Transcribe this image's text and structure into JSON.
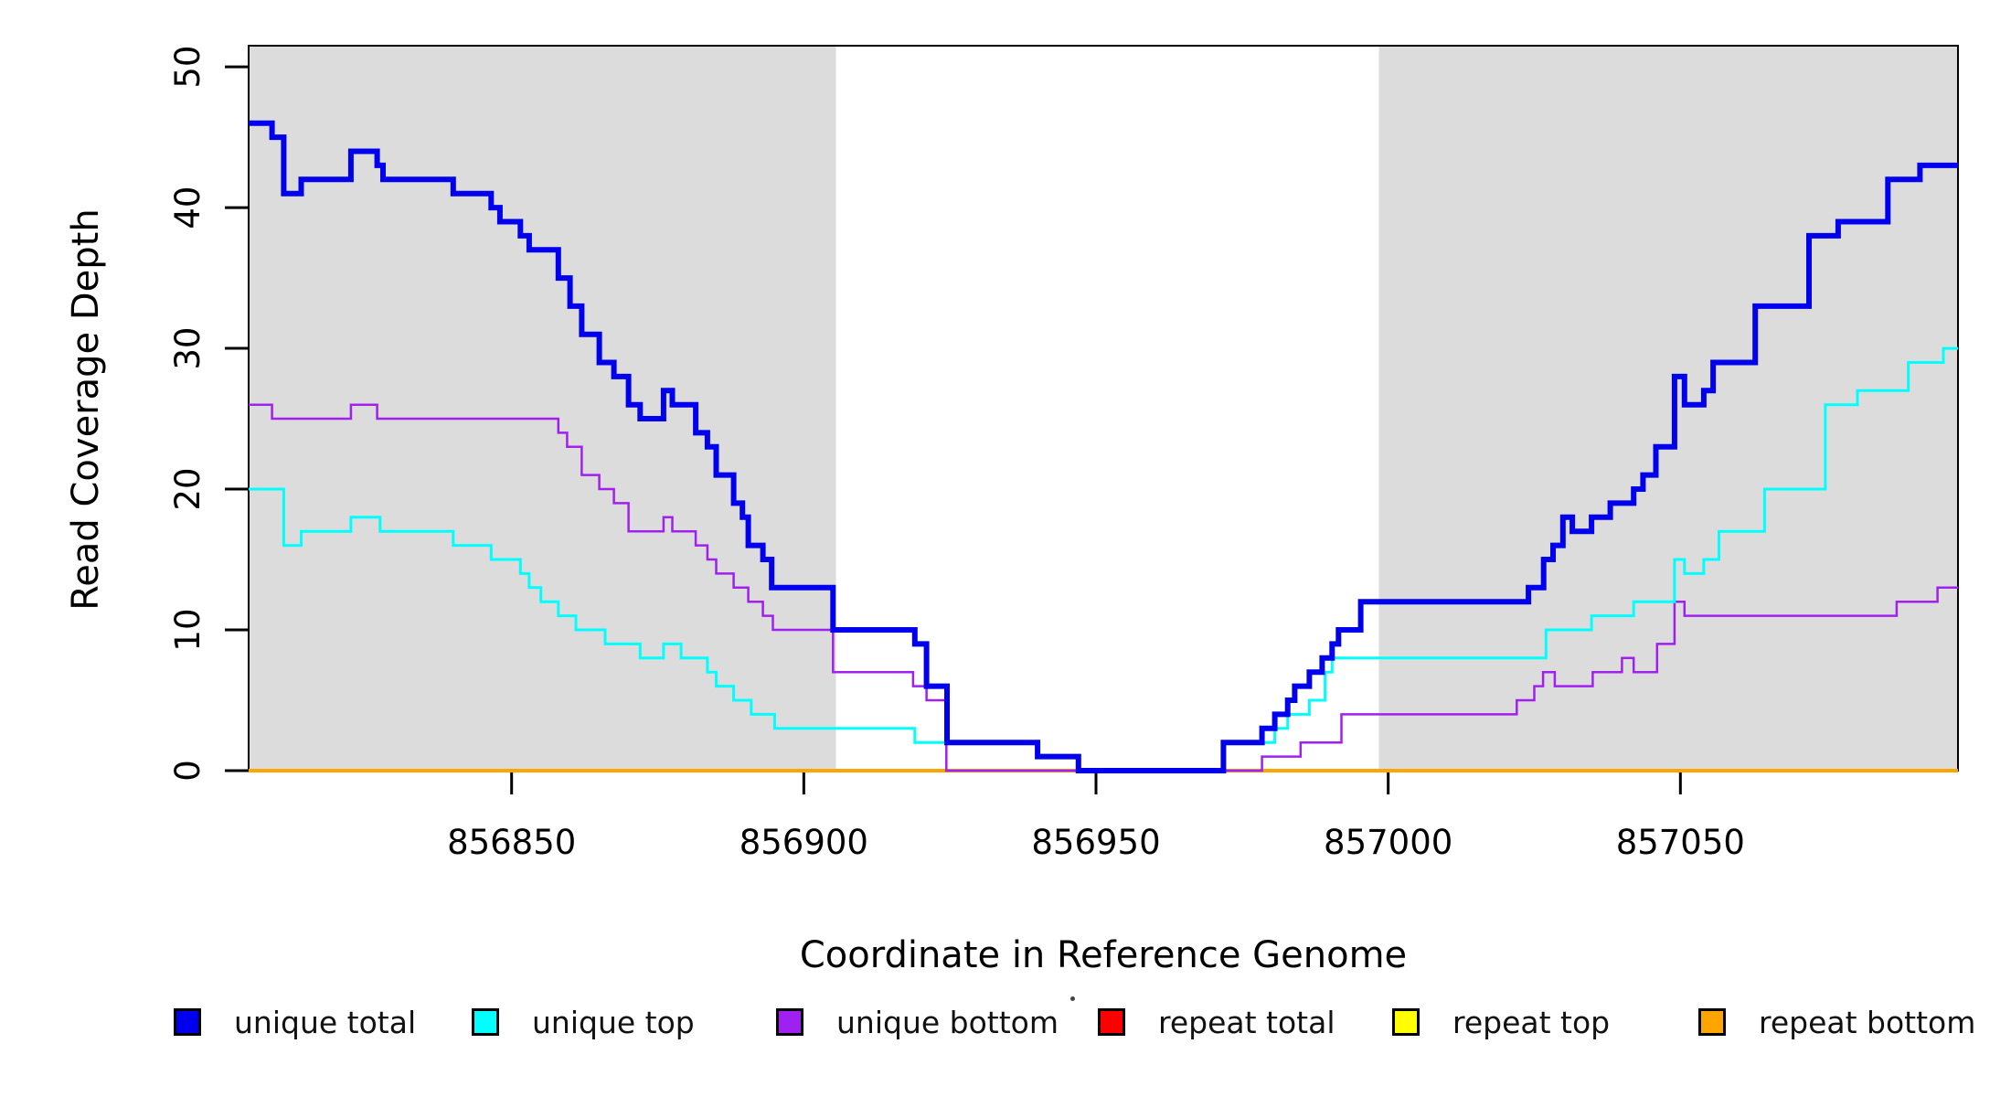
{
  "figure": {
    "x_axis_label": "Coordinate in Reference Genome",
    "y_axis_label": "Read Coverage Depth"
  },
  "colors": {
    "background": "#FFFFFF",
    "shaded_region": "#DCDCDC",
    "axis": "#000000",
    "tick_label": "#000000"
  },
  "chart_data": {
    "type": "line",
    "step": true,
    "title": "",
    "xlabel": "Coordinate in Reference Genome",
    "ylabel": "Read Coverage Depth",
    "xlim": [
      856805,
      857097.5
    ],
    "ylim": [
      0,
      51.5
    ],
    "x_ticks": [
      856850,
      856900,
      856950,
      857000,
      857050
    ],
    "y_ticks": [
      0,
      10,
      20,
      30,
      40,
      50
    ],
    "grid": false,
    "legend_position": "bottom",
    "shaded_regions": [
      {
        "x0": 856805,
        "x1": 856905.5,
        "color": "#DCDCDC"
      },
      {
        "x0": 856998.4,
        "x1": 857097.5,
        "color": "#DCDCDC"
      }
    ],
    "series": [
      {
        "name": "unique total",
        "color": "#0000EE",
        "width": 6,
        "steps": [
          [
            856805,
            46
          ],
          [
            856809,
            45
          ],
          [
            856811,
            41
          ],
          [
            856814,
            42
          ],
          [
            856822.5,
            44
          ],
          [
            856827,
            43
          ],
          [
            856828,
            42
          ],
          [
            856840,
            41
          ],
          [
            856846.5,
            40
          ],
          [
            856848,
            39
          ],
          [
            856851.5,
            38
          ],
          [
            856853,
            37
          ],
          [
            856858,
            35
          ],
          [
            856860,
            33
          ],
          [
            856862,
            31
          ],
          [
            856865,
            29
          ],
          [
            856867.5,
            28
          ],
          [
            856870,
            26
          ],
          [
            856872,
            25
          ],
          [
            856876,
            27
          ],
          [
            856877.5,
            26
          ],
          [
            856881.5,
            24
          ],
          [
            856883.5,
            23
          ],
          [
            856885,
            21
          ],
          [
            856888,
            19
          ],
          [
            856889.5,
            18
          ],
          [
            856890.5,
            16
          ],
          [
            856893,
            15
          ],
          [
            856894.5,
            13
          ],
          [
            856905,
            10
          ],
          [
            856919,
            9
          ],
          [
            856921,
            6
          ],
          [
            856924.5,
            2
          ],
          [
            856940,
            1
          ],
          [
            856947,
            0
          ],
          [
            856971.8,
            2
          ],
          [
            856978.4,
            3
          ],
          [
            856980.6,
            4
          ],
          [
            856982.8,
            5
          ],
          [
            856984,
            6
          ],
          [
            856986.5,
            7
          ],
          [
            856988.7,
            8
          ],
          [
            856990.4,
            9
          ],
          [
            856991.5,
            10
          ],
          [
            856995.3,
            12
          ],
          [
            857024,
            13
          ],
          [
            857026.6,
            15
          ],
          [
            857028.2,
            16
          ],
          [
            857029.9,
            18
          ],
          [
            857031.5,
            17
          ],
          [
            857034.8,
            18
          ],
          [
            857038,
            19
          ],
          [
            857042,
            20
          ],
          [
            857043.6,
            21
          ],
          [
            857045.8,
            23
          ],
          [
            857049,
            28
          ],
          [
            857050.7,
            26
          ],
          [
            857054,
            27
          ],
          [
            857055.6,
            29
          ],
          [
            857062.8,
            33
          ],
          [
            857072,
            38
          ],
          [
            857077,
            39
          ],
          [
            857085.5,
            42
          ],
          [
            857091,
            43
          ]
        ]
      },
      {
        "name": "unique top",
        "color": "#00FFFF",
        "width": 3,
        "steps": [
          [
            856805,
            20
          ],
          [
            856811,
            16
          ],
          [
            856814,
            17
          ],
          [
            856822.5,
            18
          ],
          [
            856827.5,
            17
          ],
          [
            856840,
            16
          ],
          [
            856846.5,
            15
          ],
          [
            856851.5,
            14
          ],
          [
            856853,
            13
          ],
          [
            856855,
            12
          ],
          [
            856858,
            11
          ],
          [
            856861,
            10
          ],
          [
            856866,
            9
          ],
          [
            856872,
            8
          ],
          [
            856876,
            9
          ],
          [
            856879,
            8
          ],
          [
            856883.5,
            7
          ],
          [
            856885,
            6
          ],
          [
            856888,
            5
          ],
          [
            856891,
            4
          ],
          [
            856895,
            3
          ],
          [
            856919,
            2
          ],
          [
            856940,
            1
          ],
          [
            856947,
            0
          ],
          [
            856971.8,
            2
          ],
          [
            856980.6,
            3
          ],
          [
            856982.8,
            4
          ],
          [
            856986.5,
            5
          ],
          [
            856989.2,
            7
          ],
          [
            856990.4,
            8
          ],
          [
            857027,
            10
          ],
          [
            857034.8,
            11
          ],
          [
            857042,
            12
          ],
          [
            857049,
            15
          ],
          [
            857050.7,
            14
          ],
          [
            857054,
            15
          ],
          [
            857056.6,
            17
          ],
          [
            857064.4,
            20
          ],
          [
            857074.8,
            26
          ],
          [
            857080.3,
            27
          ],
          [
            857089,
            29
          ],
          [
            857095,
            30
          ]
        ]
      },
      {
        "name": "unique bottom",
        "color": "#A020F0",
        "width": 2.5,
        "steps": [
          [
            856805,
            26
          ],
          [
            856809,
            25
          ],
          [
            856822.5,
            26
          ],
          [
            856827,
            25
          ],
          [
            856858,
            24
          ],
          [
            856859.5,
            23
          ],
          [
            856862,
            21
          ],
          [
            856865,
            20
          ],
          [
            856867.5,
            19
          ],
          [
            856870,
            17
          ],
          [
            856876,
            18
          ],
          [
            856877.5,
            17
          ],
          [
            856881.5,
            16
          ],
          [
            856883.5,
            15
          ],
          [
            856885,
            14
          ],
          [
            856888,
            13
          ],
          [
            856890.5,
            12
          ],
          [
            856893,
            11
          ],
          [
            856894.7,
            10
          ],
          [
            856905,
            7
          ],
          [
            856918.7,
            6
          ],
          [
            856921,
            5
          ],
          [
            856924.4,
            0
          ],
          [
            856978.4,
            1
          ],
          [
            856985,
            2
          ],
          [
            856992,
            4
          ],
          [
            857022,
            5
          ],
          [
            857025,
            6
          ],
          [
            857026.5,
            7
          ],
          [
            857028.5,
            6
          ],
          [
            857035,
            7
          ],
          [
            857040,
            8
          ],
          [
            857042,
            7
          ],
          [
            857046,
            9
          ],
          [
            857049,
            12
          ],
          [
            857050.7,
            11
          ],
          [
            857087,
            12
          ],
          [
            857094,
            13
          ]
        ]
      },
      {
        "name": "repeat total",
        "color": "#FF0000",
        "width": 2.5,
        "steps": [
          [
            856805,
            0
          ]
        ]
      },
      {
        "name": "repeat top",
        "color": "#FFFF00",
        "width": 2.5,
        "steps": [
          [
            856805,
            0
          ]
        ]
      },
      {
        "name": "repeat bottom",
        "color": "#FFA500",
        "width": 4,
        "steps": [
          [
            856805,
            0
          ]
        ]
      }
    ],
    "draw_order": [
      3,
      4,
      5,
      2,
      1,
      0
    ]
  }
}
